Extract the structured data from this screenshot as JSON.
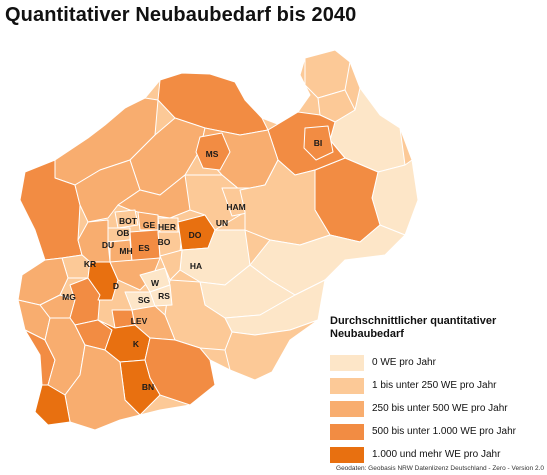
{
  "title": "Quantitativer Neubaubedarf bis 2040",
  "legend": {
    "title_line1": "Durchschnittlicher quantitativer",
    "title_line2": "Neubaubedarf",
    "items": [
      {
        "label": "0 WE pro Jahr",
        "color": "#fde6c8"
      },
      {
        "label": "1 bis unter 250 WE pro Jahr",
        "color": "#fcc997"
      },
      {
        "label": "250 bis unter 500 WE pro Jahr",
        "color": "#f8ad6f"
      },
      {
        "label": "500 bis unter 1.000 WE pro Jahr",
        "color": "#f28c43"
      },
      {
        "label": "1.000 und mehr WE pro Jahr",
        "color": "#e87010"
      }
    ]
  },
  "cities": {
    "ms": "MS",
    "bi": "BI",
    "ham": "HAM",
    "un": "UN",
    "do": "DO",
    "ha": "HA",
    "bot": "BOT",
    "ge": "GE",
    "ob": "OB",
    "her": "HER",
    "du": "DU",
    "mh": "MH",
    "es": "ES",
    "bo": "BO",
    "kr": "KR",
    "d": "D",
    "w": "W",
    "mg": "MG",
    "sg": "SG",
    "rs": "RS",
    "lev": "LEV",
    "k": "K",
    "bn": "BN"
  },
  "source": "Geodaten: Geobasis NRW Datenlizenz Deutschland - Zero - Version 2.0"
}
